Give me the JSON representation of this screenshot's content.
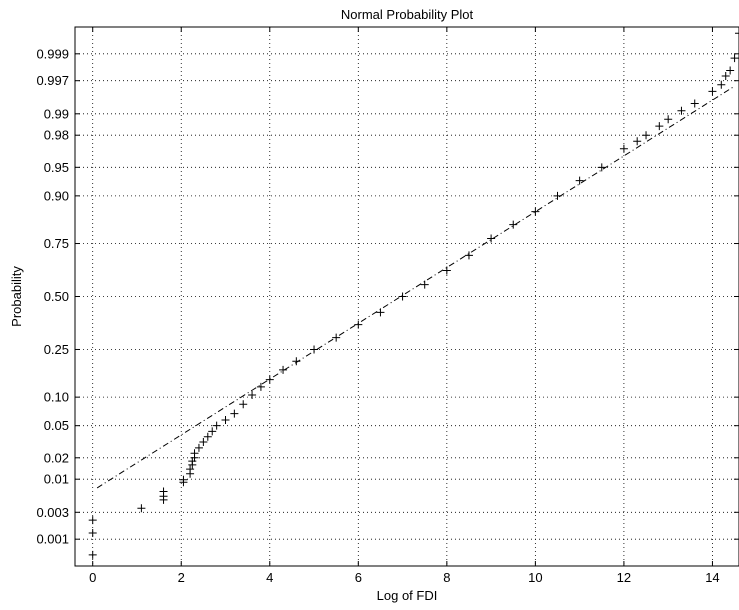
{
  "chart_data": {
    "type": "scatter",
    "title": "Normal Probability Plot",
    "xlabel": "Log of FDI",
    "ylabel": "Probability",
    "xlim": [
      -0.4,
      14.6
    ],
    "x_ticks": [
      0,
      2,
      4,
      6,
      8,
      10,
      12,
      14
    ],
    "y_scale": "normal-probability",
    "y_ticks": [
      "0.001",
      "0.003",
      "0.01",
      "0.02",
      "0.05",
      "0.10",
      "0.25",
      "0.50",
      "0.75",
      "0.90",
      "0.95",
      "0.98",
      "0.99",
      "0.997",
      "0.999"
    ],
    "grid": true,
    "marker": "+",
    "reference_line": {
      "x": [
        0.1,
        14.5
      ],
      "p": [
        0.0074,
        0.9963
      ],
      "style": "dash-dot"
    },
    "series": [
      {
        "points": [
          [
            0.0,
            0.0005
          ],
          [
            0.0,
            0.0013
          ],
          [
            0.0,
            0.0022
          ],
          [
            1.1,
            0.0035
          ],
          [
            1.6,
            0.0048
          ],
          [
            1.6,
            0.0055
          ],
          [
            1.6,
            0.0065
          ],
          [
            2.05,
            0.009
          ],
          [
            2.05,
            0.0098
          ],
          [
            2.2,
            0.012
          ],
          [
            2.2,
            0.014
          ],
          [
            2.25,
            0.016
          ],
          [
            2.25,
            0.018
          ],
          [
            2.3,
            0.02
          ],
          [
            2.3,
            0.023
          ],
          [
            2.4,
            0.027
          ],
          [
            2.5,
            0.032
          ],
          [
            2.6,
            0.037
          ],
          [
            2.7,
            0.043
          ],
          [
            2.8,
            0.05
          ],
          [
            3.0,
            0.058
          ],
          [
            3.2,
            0.068
          ],
          [
            3.4,
            0.085
          ],
          [
            3.6,
            0.105
          ],
          [
            3.8,
            0.125
          ],
          [
            4.0,
            0.145
          ],
          [
            4.3,
            0.175
          ],
          [
            4.6,
            0.205
          ],
          [
            5.0,
            0.25
          ],
          [
            5.5,
            0.3
          ],
          [
            6.0,
            0.36
          ],
          [
            6.5,
            0.42
          ],
          [
            7.0,
            0.5
          ],
          [
            7.5,
            0.56
          ],
          [
            8.0,
            0.63
          ],
          [
            8.5,
            0.7
          ],
          [
            9.0,
            0.77
          ],
          [
            9.5,
            0.82
          ],
          [
            10.0,
            0.86
          ],
          [
            10.5,
            0.9
          ],
          [
            11.0,
            0.93
          ],
          [
            11.5,
            0.95
          ],
          [
            12.0,
            0.97
          ],
          [
            12.3,
            0.976
          ],
          [
            12.5,
            0.98
          ],
          [
            12.8,
            0.985
          ],
          [
            13.0,
            0.988
          ],
          [
            13.3,
            0.991
          ],
          [
            13.6,
            0.993
          ],
          [
            14.0,
            0.9955
          ],
          [
            14.2,
            0.9965
          ],
          [
            14.3,
            0.9975
          ],
          [
            14.4,
            0.998
          ],
          [
            14.5,
            0.9988
          ],
          [
            14.6,
            0.9996
          ]
        ]
      }
    ]
  }
}
